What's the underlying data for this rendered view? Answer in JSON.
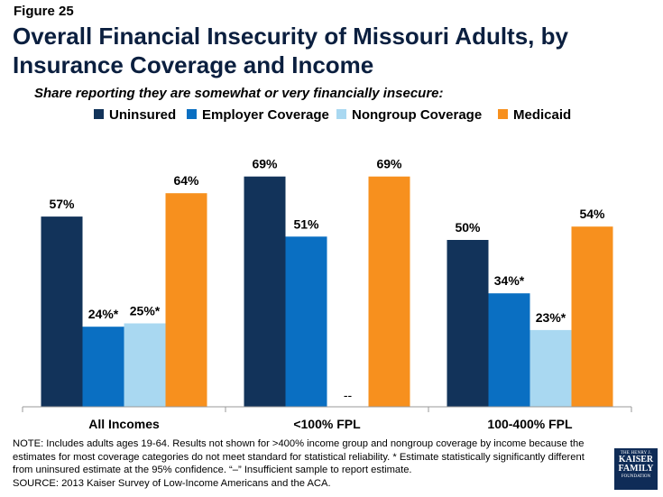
{
  "figure_label": "Figure 25",
  "title": "Overall Financial Insecurity of Missouri Adults, by Insurance Coverage and Income",
  "subtitle": "Share reporting they are somewhat or very financially insecure:",
  "legend": [
    {
      "name": "Uninsured",
      "color": "#12335a"
    },
    {
      "name": "Employer Coverage",
      "color": "#0a6fc2"
    },
    {
      "name": "Nongroup Coverage",
      "color": "#a9d8f1"
    },
    {
      "name": "Medicaid",
      "color": "#f7901e"
    }
  ],
  "chart_data": {
    "type": "bar",
    "categories": [
      "All Incomes",
      "<100% FPL",
      "100-400% FPL"
    ],
    "series": [
      {
        "name": "Uninsured",
        "color": "#12335a",
        "values": [
          57,
          69,
          50
        ],
        "labels": [
          "57%",
          "69%",
          "50%"
        ]
      },
      {
        "name": "Employer Coverage",
        "color": "#0a6fc2",
        "values": [
          24,
          51,
          34
        ],
        "labels": [
          "24%*",
          "51%",
          "34%*"
        ]
      },
      {
        "name": "Nongroup Coverage",
        "color": "#a9d8f1",
        "values": [
          25,
          null,
          23
        ],
        "labels": [
          "25%*",
          "--",
          "23%*"
        ]
      },
      {
        "name": "Medicaid",
        "color": "#f7901e",
        "values": [
          64,
          69,
          54
        ],
        "labels": [
          "64%",
          "69%",
          "54%"
        ]
      }
    ],
    "ylim": [
      0,
      80
    ],
    "grid": false,
    "legend_position": "top"
  },
  "note": "NOTE: Includes adults ages 19-64. Results not shown for >400% income group and nongroup coverage by income because the estimates for most coverage categories do not meet standard for statistical reliability. * Estimate statistically significantly different from uninsured estimate at the 95% confidence. “–” Insufficient sample to report estimate.",
  "source": "SOURCE: 2013 Kaiser Survey of Low-Income Americans and the ACA.",
  "logo": {
    "line1": "THE HENRY J.",
    "line2": "KAISER",
    "line3": "FAMILY",
    "line4": "FOUNDATION"
  }
}
